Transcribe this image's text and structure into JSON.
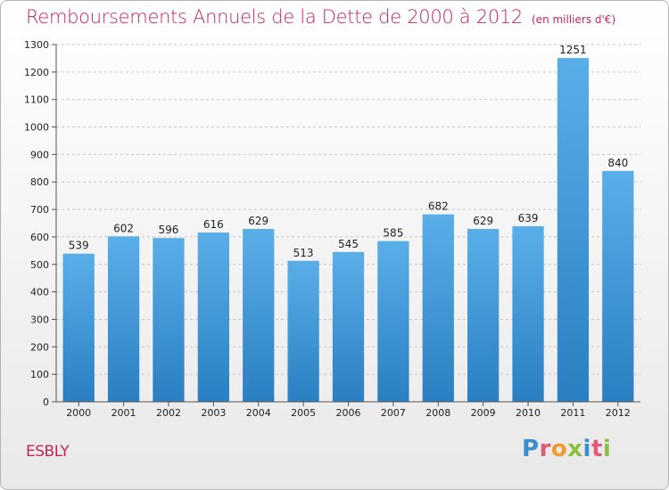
{
  "header": {
    "title": "Remboursements Annuels de la Dette de 2000 à 2012",
    "unit": "(en milliers d'€)"
  },
  "footer": {
    "city": "ESBLY",
    "logo_text": "Proxiti"
  },
  "colors": {
    "title": "#c0275a",
    "bar_top": "#5aaee8",
    "bar_bottom": "#2a7fc2",
    "logo_letters": [
      "#3a8fd0",
      "#e05a7a",
      "#f29a2e",
      "#8cbf3f",
      "#3a8fd0",
      "#e05a7a",
      "#8cbf3f"
    ]
  },
  "chart_data": {
    "type": "bar",
    "title": "Remboursements Annuels de la Dette de 2000 à 2012",
    "xlabel": "",
    "ylabel": "",
    "categories": [
      "2000",
      "2001",
      "2002",
      "2003",
      "2004",
      "2005",
      "2006",
      "2007",
      "2008",
      "2009",
      "2010",
      "2011",
      "2012"
    ],
    "values": [
      539,
      602,
      596,
      616,
      629,
      513,
      545,
      585,
      682,
      629,
      639,
      1251,
      840
    ],
    "ylim": [
      0,
      1300
    ],
    "yticks": [
      0,
      100,
      200,
      300,
      400,
      500,
      600,
      700,
      800,
      900,
      1000,
      1100,
      1200,
      1300
    ],
    "grid": "horizontal dashed",
    "legend": "none"
  }
}
